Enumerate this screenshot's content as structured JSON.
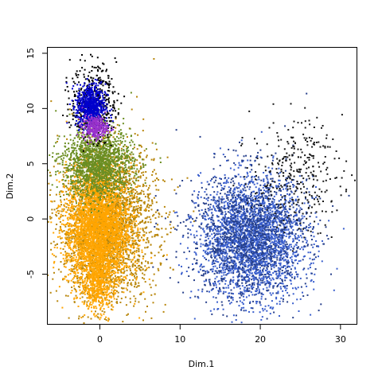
{
  "chart_data": {
    "type": "scatter",
    "title": "",
    "xlabel": "Dim.1",
    "ylabel": "Dim.2",
    "xlim": [
      -6.5,
      32
    ],
    "ylim": [
      -9.5,
      15.5
    ],
    "x_ticks": [
      0,
      10,
      20,
      30
    ],
    "y_ticks": [
      -5,
      0,
      5,
      10,
      15
    ],
    "x_tick_labels": [
      "0",
      "10",
      "20",
      "30"
    ],
    "y_tick_labels": [
      "-5",
      "0",
      "5",
      "10",
      "15"
    ],
    "grid": false,
    "legend": "none",
    "series": [
      {
        "name": "orange-dark",
        "color": "#b8860b",
        "count": 2600,
        "cx": 1.0,
        "cy": -0.5,
        "sx": 3.0,
        "sy": 3.5
      },
      {
        "name": "orange",
        "color": "#ffa500",
        "count": 3200,
        "cx": -0.2,
        "cy": -0.8,
        "sx": 2.0,
        "sy": 2.7
      },
      {
        "name": "orange-tail",
        "color": "#ffa500",
        "count": 450,
        "cx": -0.3,
        "cy": -5.8,
        "sx": 1.0,
        "sy": 1.2
      },
      {
        "name": "green",
        "color": "#6b8e23",
        "count": 1500,
        "cx": -0.3,
        "cy": 5.0,
        "sx": 2.2,
        "sy": 1.5
      },
      {
        "name": "black-top",
        "color": "#000000",
        "count": 450,
        "cx": -0.8,
        "cy": 10.5,
        "sx": 1.4,
        "sy": 1.7
      },
      {
        "name": "blue",
        "color": "#0000cd",
        "count": 650,
        "cx": -1.1,
        "cy": 10.2,
        "sx": 0.9,
        "sy": 1.0
      },
      {
        "name": "violet",
        "color": "#9932cc",
        "count": 280,
        "cx": -0.6,
        "cy": 8.3,
        "sx": 0.8,
        "sy": 0.5
      },
      {
        "name": "royal-blue",
        "color": "#3a5fcd",
        "count": 2600,
        "cx": 19.0,
        "cy": -1.8,
        "sx": 3.2,
        "sy": 2.7
      },
      {
        "name": "navy",
        "color": "#27408b",
        "count": 1200,
        "cx": 18.5,
        "cy": -1.5,
        "sx": 3.8,
        "sy": 3.0
      },
      {
        "name": "black-right",
        "color": "#1a1a1a",
        "count": 320,
        "cx": 24.5,
        "cy": 4.0,
        "sx": 2.8,
        "sy": 2.5
      }
    ]
  }
}
